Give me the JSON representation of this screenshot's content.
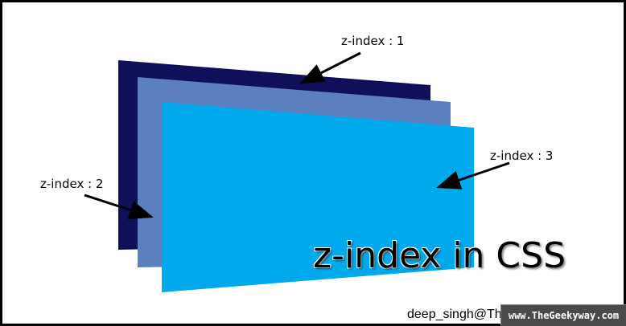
{
  "layers": [
    {
      "label": "z-index : 1",
      "color": "#10105a"
    },
    {
      "label": "z-index : 2",
      "color": "#5b7fbf"
    },
    {
      "label": "z-index : 3",
      "color": "#00a8ec"
    }
  ],
  "title": "z-index in CSS",
  "credit": "deep_singh@TheGeekyway",
  "site_banner": "www.TheGeekyway.com",
  "colors": {
    "background": "#ffffff",
    "border": "#000000",
    "arrow": "#000000",
    "banner": "#4a4a4a"
  }
}
